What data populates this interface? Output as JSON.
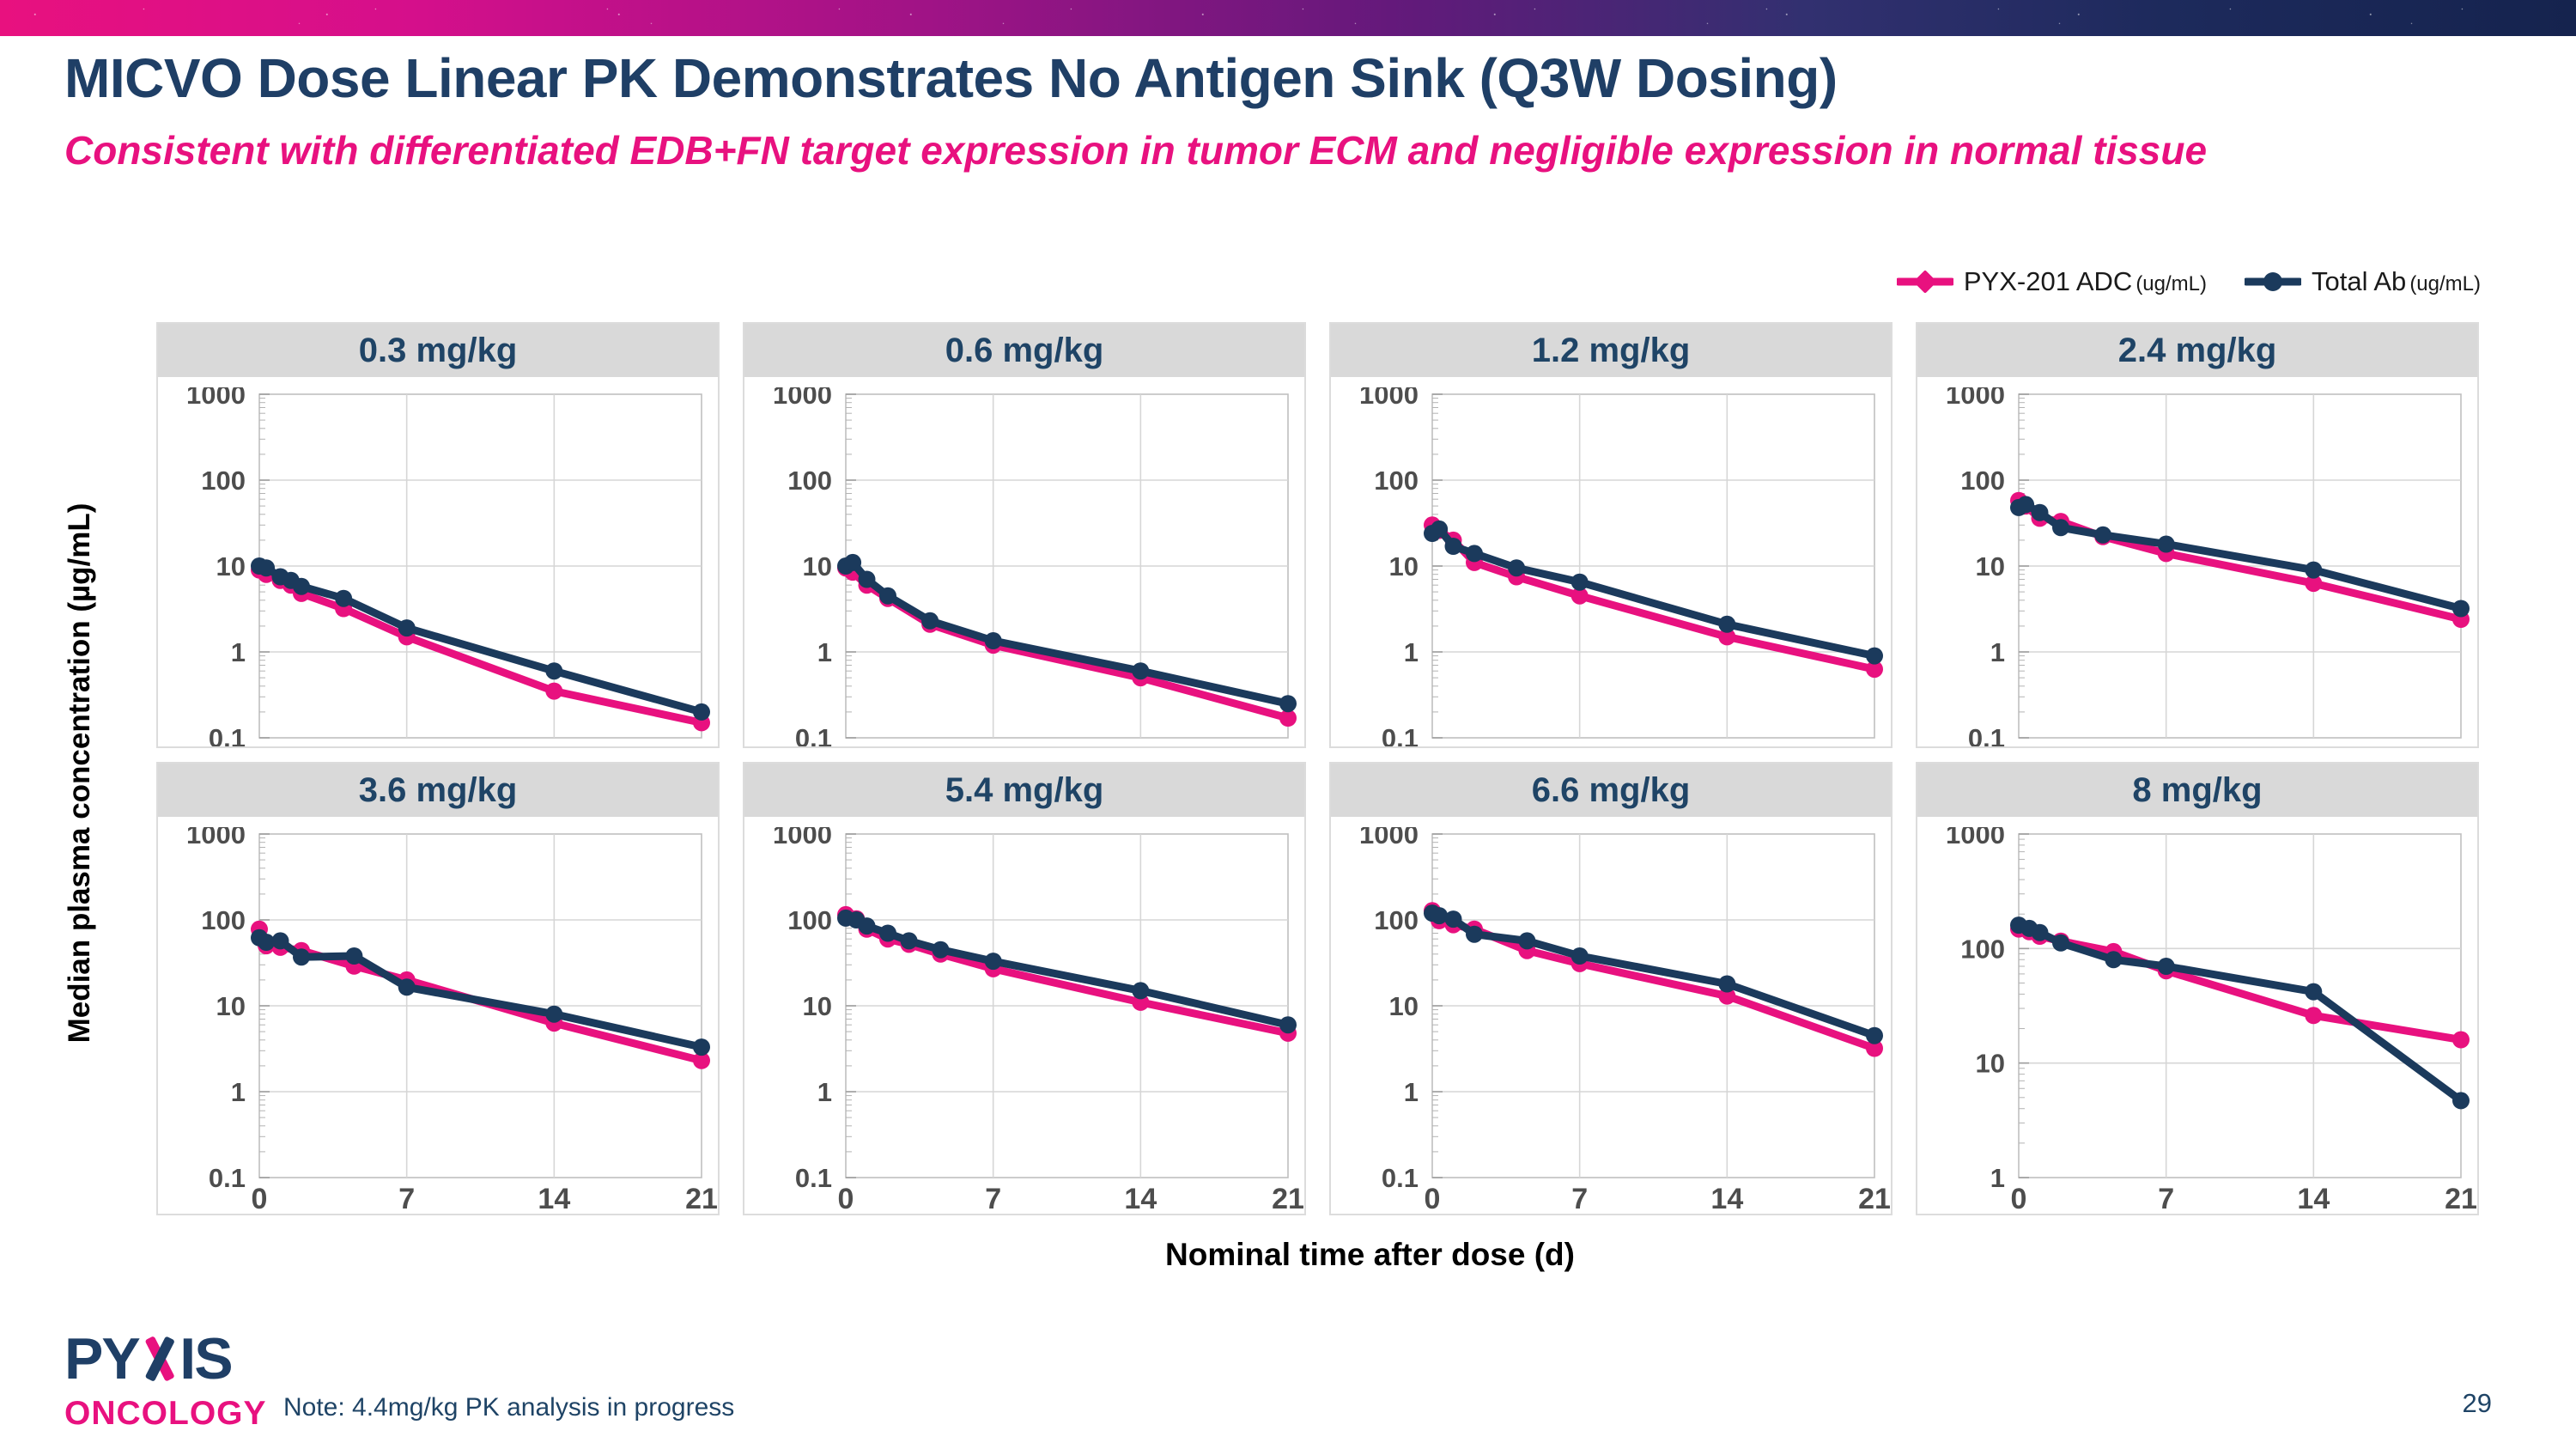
{
  "slide": {
    "title": "MICVO Dose Linear PK Demonstrates No Antigen Sink (Q3W Dosing)",
    "subtitle": "Consistent with differentiated EDB+FN target expression in tumor ECM and negligible expression in normal tissue",
    "note": "Note: 4.4mg/kg PK analysis in progress",
    "page_number": "29",
    "logo_line1_part1": "PY",
    "logo_line1_part2": "IS",
    "logo_line2": "ONCOLOGY"
  },
  "legend": {
    "items": [
      {
        "label": "PYX-201 ADC",
        "unit": "(ug/mL)",
        "color": "#E8117F",
        "marker": "diamond"
      },
      {
        "label": "Total Ab",
        "unit": "(ug/mL)",
        "color": "#1B3A5C",
        "marker": "circle"
      }
    ]
  },
  "axes": {
    "x_label": "Nominal time after dose (d)",
    "y_label": "Median plasma concentration (µg/mL)"
  },
  "colors": {
    "title": "#1F3F66",
    "subtitle_pink": "#E8117F",
    "series_pink": "#E8117F",
    "series_navy": "#1B3A5C",
    "panel_header_bg": "#D9D9D9",
    "panel_border": "#BFBFBF",
    "gridline": "#D6D6D6",
    "tick_text": "#4D4D4D",
    "minor_tick": "#B3B3B3",
    "major_tick": "#9E9E9E"
  },
  "chart_data": {
    "type": "line",
    "x_range": [
      0,
      21
    ],
    "x_ticks": [
      0,
      7,
      14,
      21
    ],
    "x_gridlines": [
      7,
      14
    ],
    "panels": [
      {
        "title": "0.3 mg/kg",
        "ylim": [
          0.1,
          1000
        ],
        "y_ticks": [
          1000,
          100,
          10,
          1,
          0.1
        ],
        "show_x_labels": false,
        "series": [
          {
            "name": "PYX-201 ADC",
            "color": "#E8117F",
            "x": [
              0,
              0.33,
              1,
              1.5,
              2,
              4,
              7,
              14,
              21
            ],
            "y": [
              9,
              8,
              6.8,
              6,
              4.8,
              3.2,
              1.5,
              0.35,
              0.15
            ]
          },
          {
            "name": "Total Ab",
            "color": "#1B3A5C",
            "x": [
              0,
              0.33,
              1,
              1.5,
              2,
              4,
              7,
              14,
              21
            ],
            "y": [
              10,
              9.5,
              7.5,
              6.8,
              5.8,
              4.2,
              1.9,
              0.6,
              0.2
            ]
          }
        ]
      },
      {
        "title": "0.6 mg/kg",
        "ylim": [
          0.1,
          1000
        ],
        "y_ticks": [
          1000,
          100,
          10,
          1,
          0.1
        ],
        "show_x_labels": false,
        "series": [
          {
            "name": "PYX-201 ADC",
            "color": "#E8117F",
            "x": [
              0,
              0.33,
              1,
              2,
              4,
              7,
              14,
              21
            ],
            "y": [
              9.5,
              8.5,
              6,
              4.2,
              2.1,
              1.2,
              0.5,
              0.17
            ]
          },
          {
            "name": "Total Ab",
            "color": "#1B3A5C",
            "x": [
              0,
              0.33,
              1,
              2,
              4,
              7,
              14,
              21
            ],
            "y": [
              10,
              11,
              7,
              4.5,
              2.3,
              1.35,
              0.6,
              0.25
            ]
          }
        ]
      },
      {
        "title": "1.2 mg/kg",
        "ylim": [
          0.1,
          1000
        ],
        "y_ticks": [
          1000,
          100,
          10,
          1,
          0.1
        ],
        "show_x_labels": false,
        "series": [
          {
            "name": "PYX-201 ADC",
            "color": "#E8117F",
            "x": [
              0,
              0.33,
              1,
              2,
              4,
              7,
              14,
              21
            ],
            "y": [
              30,
              26,
              20,
              11,
              7.5,
              4.5,
              1.5,
              0.63
            ]
          },
          {
            "name": "Total Ab",
            "color": "#1B3A5C",
            "x": [
              0,
              0.33,
              1,
              2,
              4,
              7,
              14,
              21
            ],
            "y": [
              24,
              27,
              17,
              14,
              9.5,
              6.5,
              2.1,
              0.9
            ]
          }
        ]
      },
      {
        "title": "2.4 mg/kg",
        "ylim": [
          0.1,
          1000
        ],
        "y_ticks": [
          1000,
          100,
          10,
          1,
          0.1
        ],
        "show_x_labels": false,
        "series": [
          {
            "name": "PYX-201 ADC",
            "color": "#E8117F",
            "x": [
              0,
              0.33,
              1,
              2,
              4,
              7,
              14,
              21
            ],
            "y": [
              58,
              50,
              36,
              33,
              22,
              14,
              6.3,
              2.4
            ]
          },
          {
            "name": "Total Ab",
            "color": "#1B3A5C",
            "x": [
              0,
              0.33,
              1,
              2,
              4,
              7,
              14,
              21
            ],
            "y": [
              48,
              52,
              42,
              28,
              23,
              18,
              9,
              3.2
            ]
          }
        ]
      },
      {
        "title": "3.6 mg/kg",
        "ylim": [
          0.1,
          1000
        ],
        "y_ticks": [
          1000,
          100,
          10,
          1,
          0.1
        ],
        "show_x_labels": true,
        "series": [
          {
            "name": "PYX-201 ADC",
            "color": "#E8117F",
            "x": [
              0,
              0.33,
              1,
              2,
              4.5,
              7,
              14,
              21
            ],
            "y": [
              78,
              50,
              48,
              44,
              29,
              20,
              6.3,
              2.3
            ]
          },
          {
            "name": "Total Ab",
            "color": "#1B3A5C",
            "x": [
              0,
              0.33,
              1,
              2,
              4.5,
              7,
              14,
              21
            ],
            "y": [
              62,
              55,
              57,
              37,
              38,
              16.5,
              8,
              3.3
            ]
          }
        ]
      },
      {
        "title": "5.4 mg/kg",
        "ylim": [
          0.1,
          1000
        ],
        "y_ticks": [
          1000,
          100,
          10,
          1,
          0.1
        ],
        "show_x_labels": true,
        "series": [
          {
            "name": "PYX-201 ADC",
            "color": "#E8117F",
            "x": [
              0,
              0.5,
              1,
              2,
              3,
              4.5,
              7,
              14,
              21
            ],
            "y": [
              115,
              103,
              78,
              60,
              52,
              40,
              27,
              11,
              4.8
            ]
          },
          {
            "name": "Total Ab",
            "color": "#1B3A5C",
            "x": [
              0,
              0.5,
              1,
              2,
              3,
              4.5,
              7,
              14,
              21
            ],
            "y": [
              105,
              100,
              85,
              70,
              57,
              45,
              33,
              15,
              6
            ]
          }
        ]
      },
      {
        "title": "6.6 mg/kg",
        "ylim": [
          0.1,
          1000
        ],
        "y_ticks": [
          1000,
          100,
          10,
          1,
          0.1
        ],
        "show_x_labels": true,
        "series": [
          {
            "name": "PYX-201 ADC",
            "color": "#E8117F",
            "x": [
              0,
              0.33,
              1,
              2,
              4.5,
              7,
              14,
              21
            ],
            "y": [
              128,
              98,
              88,
              78,
              44,
              31,
              13,
              3.2
            ]
          },
          {
            "name": "Total Ab",
            "color": "#1B3A5C",
            "x": [
              0,
              0.33,
              1,
              2,
              4.5,
              7,
              14,
              21
            ],
            "y": [
              120,
              112,
              102,
              68,
              57,
              38,
              18,
              4.5
            ]
          }
        ]
      },
      {
        "title": "8 mg/kg",
        "ylim": [
          1,
          1000
        ],
        "y_ticks": [
          1000,
          100,
          10,
          1
        ],
        "show_x_labels": true,
        "series": [
          {
            "name": "PYX-201 ADC",
            "color": "#E8117F",
            "x": [
              0,
              0.5,
              1,
              2,
              4.5,
              7,
              14,
              21
            ],
            "y": [
              148,
              140,
              128,
              116,
              94,
              64,
              26,
              16
            ]
          },
          {
            "name": "Total Ab",
            "color": "#1B3A5C",
            "x": [
              0,
              0.5,
              1,
              2,
              4.5,
              7,
              14,
              21
            ],
            "y": [
              160,
              150,
              138,
              112,
              80,
              70,
              42,
              4.7
            ]
          }
        ]
      }
    ]
  }
}
